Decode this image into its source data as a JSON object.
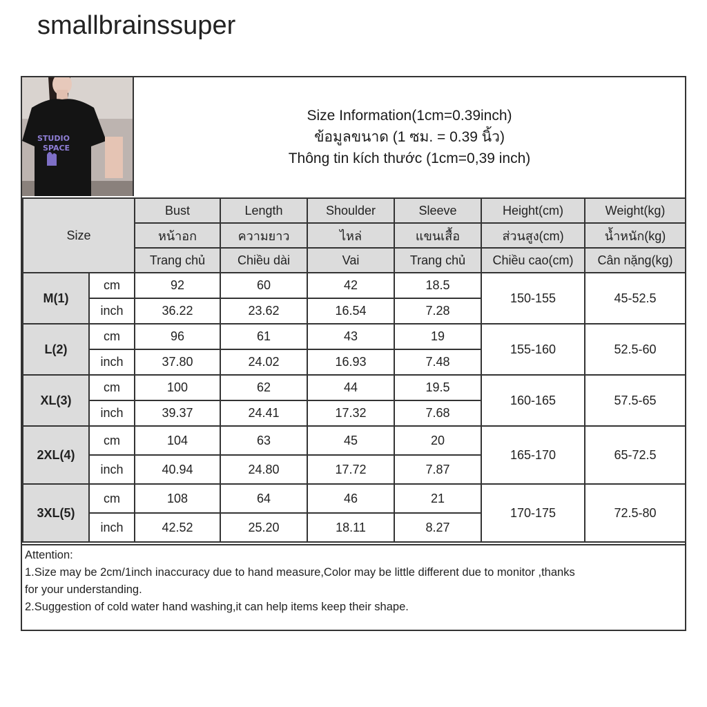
{
  "store_name": "smallbrainssuper",
  "photo": {
    "print_line1": "STUDIO",
    "print_line2": "SPACE"
  },
  "size_info": {
    "line_en": "Size Information(1cm=0.39inch)",
    "line_th": "ข้อมูลขนาด (1 ซม. = 0.39 นิ้ว)",
    "line_vi": "Thông tin kích thước (1cm=0,39 inch)"
  },
  "size_heading": "Size",
  "columns": [
    {
      "en": "Bust",
      "th": "หน้าอก",
      "vi": "Trang chủ"
    },
    {
      "en": "Length",
      "th": "ความยาว",
      "vi": "Chiều dài"
    },
    {
      "en": "Shoulder",
      "th": "ไหล่",
      "vi": "Vai"
    },
    {
      "en": "Sleeve",
      "th": "แขนเสื้อ",
      "vi": "Trang chủ"
    },
    {
      "en": "Height(cm)",
      "th": "ส่วนสูง(cm)",
      "vi": "Chiều cao(cm)"
    },
    {
      "en": "Weight(kg)",
      "th": "น้ำหนัก(kg)",
      "vi": "Cân nặng(kg)"
    }
  ],
  "rows": [
    {
      "size": "M(1)",
      "cm_label": "cm",
      "inch_label": "inch",
      "cm": [
        "92",
        "60",
        "42",
        "18.5"
      ],
      "inch": [
        "36.22",
        "23.62",
        "16.54",
        "7.28"
      ],
      "height": "150-155",
      "weight": "45-52.5"
    },
    {
      "size": "L(2)",
      "cm_label": "cm",
      "inch_label": "inch",
      "cm": [
        "96",
        "61",
        "43",
        "19"
      ],
      "inch": [
        "37.80",
        "24.02",
        "16.93",
        "7.48"
      ],
      "height": "155-160",
      "weight": "52.5-60"
    },
    {
      "size": "XL(3)",
      "cm_label": "cm",
      "inch_label": "inch",
      "cm": [
        "100",
        "62",
        "44",
        "19.5"
      ],
      "inch": [
        "39.37",
        "24.41",
        "17.32",
        "7.68"
      ],
      "height": "160-165",
      "weight": "57.5-65"
    },
    {
      "size": "2XL(4)",
      "cm_label": "cm",
      "inch_label": "inch",
      "cm": [
        "104",
        "63",
        "45",
        "20"
      ],
      "inch": [
        "40.94",
        "24.80",
        "17.72",
        "7.87"
      ],
      "height": "165-170",
      "weight": "65-72.5"
    },
    {
      "size": "3XL(5)",
      "cm_label": "cm",
      "inch_label": "inch",
      "cm": [
        "108",
        "64",
        "46",
        "21"
      ],
      "inch": [
        "42.52",
        "25.20",
        "18.11",
        "8.27"
      ],
      "height": "170-175",
      "weight": "72.5-80"
    }
  ],
  "attention": {
    "title": "Attention:",
    "note1_line1": "1.Size may be 2cm/1inch inaccuracy due to hand measure,Color may be little different due to monitor ,thanks",
    "note1_line2": "for your understanding.",
    "note2": "2.Suggestion of cold water hand washing,it can help items keep their shape."
  }
}
